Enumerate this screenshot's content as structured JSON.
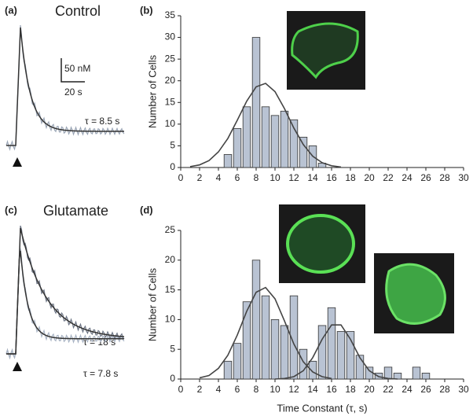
{
  "chart_data": [
    {
      "type": "trace",
      "panel_label": "(a)",
      "title": "Control",
      "scale_y": "50 nM",
      "scale_x": "20 s",
      "annotations": [
        "τ = 8.5 s"
      ]
    },
    {
      "type": "bar",
      "panel_label": "(b)",
      "ylabel": "Number of Cells",
      "x": [
        5,
        6,
        7,
        8,
        9,
        10,
        11,
        12,
        13,
        14,
        15
      ],
      "values": [
        3,
        9,
        14,
        30,
        14,
        12,
        13,
        11,
        7,
        5,
        1
      ],
      "color": "#b9c3d3",
      "fits": [
        {
          "color": "#444",
          "x": [
            1,
            2,
            3,
            4,
            5,
            6,
            7,
            8,
            9,
            10,
            11,
            12,
            13,
            14,
            15,
            16,
            17
          ],
          "values": [
            0.2,
            0.6,
            1.6,
            3.6,
            6.7,
            10.9,
            15.3,
            18.6,
            19.4,
            17.5,
            13.6,
            9.1,
            5.3,
            2.6,
            1.1,
            0.4,
            0.1
          ]
        }
      ],
      "xlim": [
        0,
        30
      ],
      "xticks": [
        0,
        2,
        4,
        6,
        8,
        10,
        12,
        14,
        16,
        18,
        20,
        22,
        24,
        26,
        28,
        30
      ],
      "ylim": [
        0,
        35
      ],
      "yticks": [
        0,
        5,
        10,
        15,
        20,
        25,
        30,
        35
      ]
    },
    {
      "type": "trace",
      "panel_label": "(c)",
      "title": "Glutamate",
      "annotations": [
        "τ = 18 s",
        "τ = 7.8 s"
      ]
    },
    {
      "type": "bar",
      "panel_label": "(d)",
      "ylabel": "Number of Cells",
      "xlabel": "Time Constant   (τ, s)",
      "x": [
        5,
        6,
        7,
        8,
        9,
        10,
        11,
        12,
        13,
        14,
        15,
        16,
        17,
        18,
        19,
        20,
        21,
        22,
        23,
        25,
        26
      ],
      "values": [
        3,
        6,
        13,
        20,
        14,
        10,
        9,
        14,
        5,
        3,
        9,
        12,
        8,
        8,
        4,
        2,
        1,
        2,
        1,
        2,
        1
      ],
      "color": "#b9c3d3",
      "fits": [
        {
          "color": "#444",
          "x": [
            2,
            3,
            4,
            5,
            6,
            7,
            8,
            9,
            10,
            11,
            12,
            13,
            14,
            15,
            16
          ],
          "values": [
            0.2,
            0.6,
            1.8,
            4.0,
            7.4,
            11.4,
            14.6,
            15.4,
            13.5,
            9.8,
            5.9,
            2.9,
            1.2,
            0.4,
            0.1
          ]
        },
        {
          "color": "#444",
          "x": [
            10,
            11,
            12,
            13,
            14,
            15,
            16,
            17,
            18,
            19,
            20,
            21,
            22,
            23
          ],
          "values": [
            0,
            0.1,
            0.4,
            1.4,
            3.6,
            6.7,
            9.1,
            9.1,
            6.7,
            3.6,
            1.4,
            0.4,
            0.1,
            0
          ]
        }
      ],
      "xlim": [
        0,
        30
      ],
      "xticks": [
        0,
        2,
        4,
        6,
        8,
        10,
        12,
        14,
        16,
        18,
        20,
        22,
        24,
        26,
        28,
        30
      ],
      "ylim": [
        0,
        25
      ],
      "yticks": [
        0,
        5,
        10,
        15,
        20,
        25
      ]
    }
  ]
}
